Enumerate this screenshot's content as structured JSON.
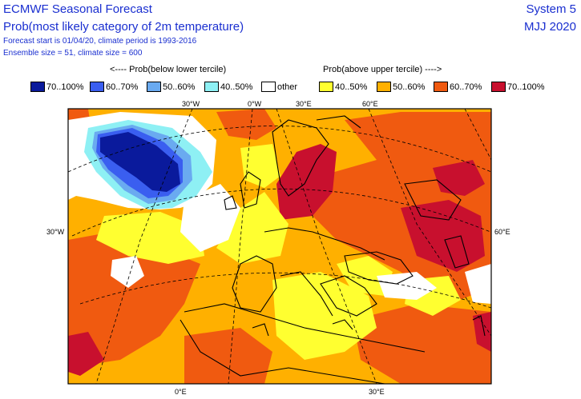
{
  "header": {
    "title": "ECMWF Seasonal Forecast",
    "subtitle": "Prob(most likely category of 2m temperature)",
    "forecast_info": "Forecast start is 01/04/20, climate period is 1993-2016",
    "ensemble_info": "Ensemble size = 51, climate size = 600",
    "system": "System 5",
    "period": "MJJ 2020"
  },
  "legend": {
    "below_header": "<---- Prob(below lower tercile)",
    "above_header": "Prob(above upper tercile) ---->",
    "items": [
      {
        "label": "70..100%",
        "color": "#0a1a9c"
      },
      {
        "label": "60..70%",
        "color": "#3a5ef0"
      },
      {
        "label": "50..60%",
        "color": "#6aaaf0"
      },
      {
        "label": "40..50%",
        "color": "#8ef0f4"
      },
      {
        "label": "other",
        "color": "#ffffff"
      },
      {
        "label": "40..50%",
        "color": "#ffff30"
      },
      {
        "label": "50..60%",
        "color": "#ffb000"
      },
      {
        "label": "60..70%",
        "color": "#f05a10"
      },
      {
        "label": "70..100%",
        "color": "#c8102e"
      }
    ]
  },
  "map": {
    "top_labels": [
      "30°W",
      "0°W",
      "30°E",
      "60°E"
    ],
    "left_label": "30°W",
    "right_label": "60°E",
    "bottom_labels": [
      "0°E",
      "30°E"
    ]
  }
}
